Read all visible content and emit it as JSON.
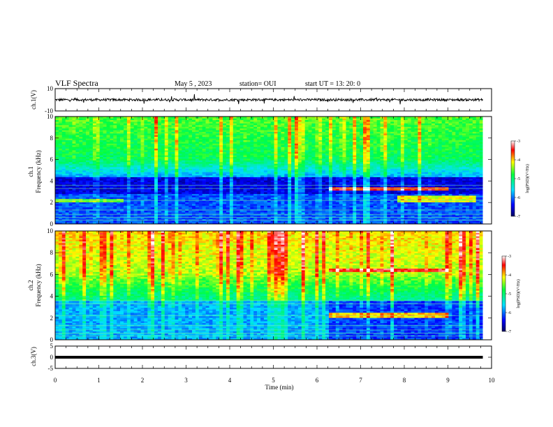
{
  "header": {
    "title": "VLF Spectra",
    "date": "May 5  , 2023",
    "station": "station= OUI",
    "start": "start  UT  =   13: 20: 0"
  },
  "chart_data": [
    {
      "type": "line",
      "ylabel": "ch.1(V)",
      "ylim": [
        -10,
        10
      ],
      "yticks": [
        "10",
        "-10"
      ],
      "xlim": [
        0,
        10
      ]
    },
    {
      "type": "heatmap",
      "ylabel_line1": "ch.1",
      "ylabel_line2": "Frequency (kHz)",
      "ylim": [
        0,
        10
      ],
      "yticks": [
        "0",
        "2",
        "4",
        "6",
        "8",
        "10"
      ],
      "colorbar": {
        "label": "log(PSD)(V²/Hz)",
        "range": [
          -7,
          -3
        ],
        "ticks": [
          "-3",
          "-4",
          "-5",
          "-6",
          "-7"
        ]
      }
    },
    {
      "type": "heatmap",
      "ylabel_line1": "ch.2",
      "ylabel_line2": "Frequency (kHz)",
      "ylim": [
        0,
        10
      ],
      "yticks": [
        "0",
        "2",
        "4",
        "6",
        "8",
        "10"
      ],
      "colorbar": {
        "label": "log(PSD)(V²/Hz)",
        "range": [
          -7,
          -3
        ],
        "ticks": [
          "-3",
          "-4",
          "-5",
          "-6",
          "-7"
        ]
      }
    },
    {
      "type": "line",
      "ylabel": "ch.3(V)",
      "ylim": [
        -5,
        5
      ],
      "yticks": [
        "5",
        "0",
        "-5"
      ],
      "x": [
        0,
        9.8
      ],
      "y": [
        0,
        0
      ]
    }
  ],
  "xaxis": {
    "label": "Time  (min)",
    "range": [
      0,
      10
    ],
    "ticks": [
      "0",
      "1",
      "2",
      "3",
      "4",
      "5",
      "6",
      "7",
      "8",
      "9",
      "10"
    ]
  },
  "colors": {
    "axis": "#000000"
  }
}
